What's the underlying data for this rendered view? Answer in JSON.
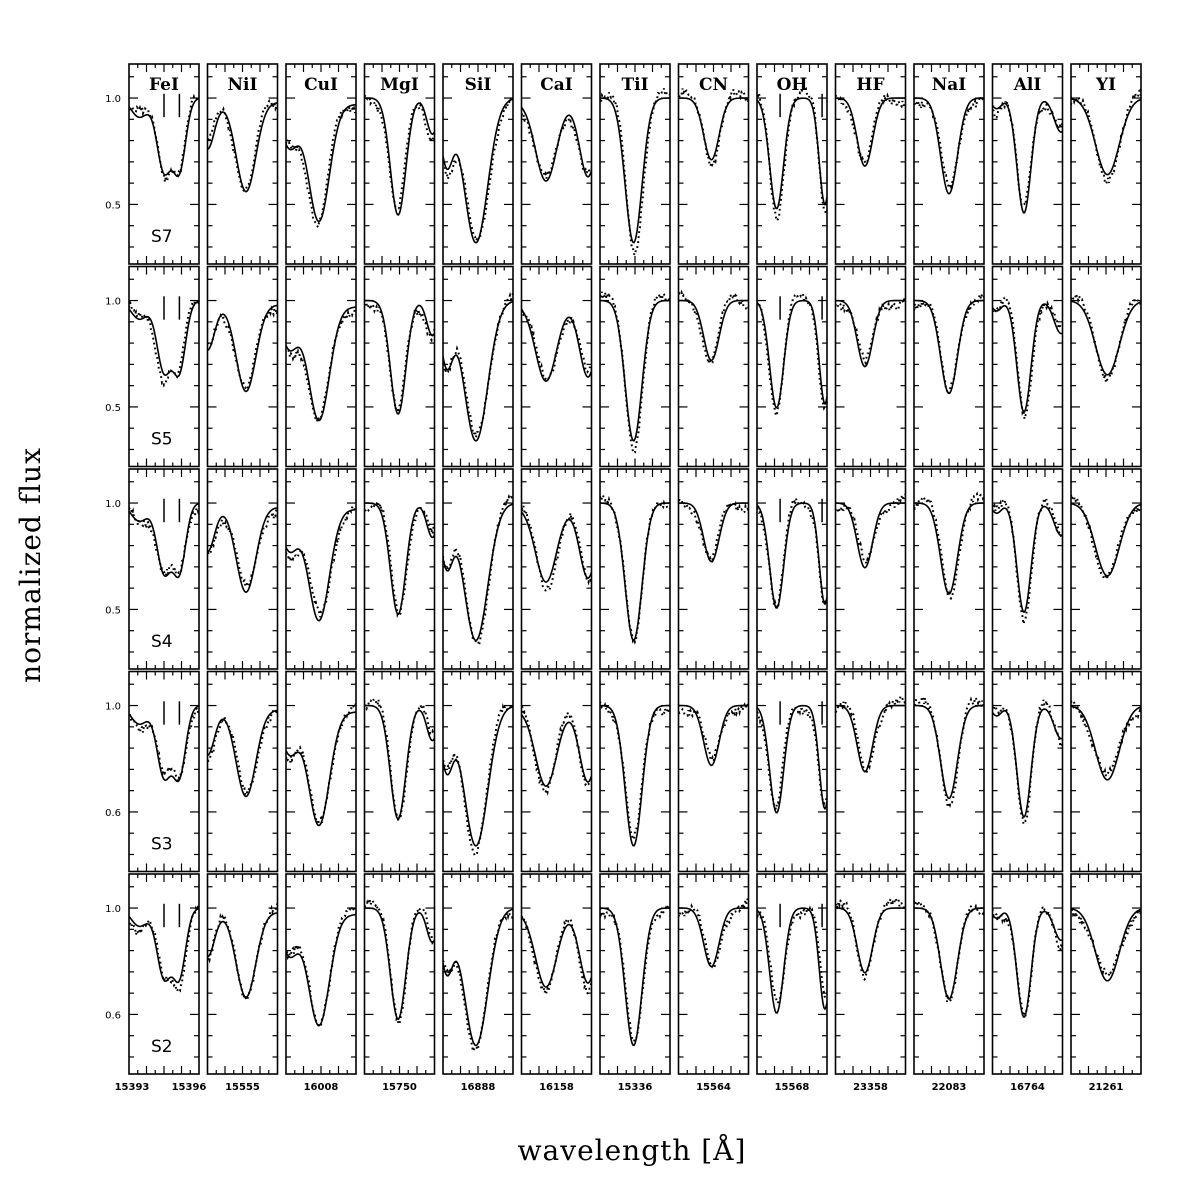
{
  "chart_data": {
    "type": "line",
    "xlabel": "wavelength [Å]",
    "ylabel": "normalized flux",
    "ylim": [
      0.22,
      1.16
    ],
    "yticks": [
      0.5,
      1.0
    ],
    "ytick_labels": [
      "0.5",
      "1.0"
    ],
    "ytick_labels_bottom_rows": [
      "0.6",
      "1.0"
    ],
    "grid": false,
    "legend": "none",
    "series_styles": {
      "model": "solid",
      "observed": "dotted"
    },
    "columns": [
      {
        "element": "FeI",
        "tick_labels": [
          "15393",
          "15396"
        ],
        "marks": [
          0.5,
          0.72
        ]
      },
      {
        "element": "NiI",
        "tick_labels": [
          "15555"
        ],
        "marks": []
      },
      {
        "element": "CuI",
        "tick_labels": [
          "16008"
        ],
        "marks": []
      },
      {
        "element": "MgI",
        "tick_labels": [
          "15750"
        ],
        "marks": []
      },
      {
        "element": "SiI",
        "tick_labels": [
          "16888"
        ],
        "marks": []
      },
      {
        "element": "CaI",
        "tick_labels": [
          "16158"
        ],
        "marks": []
      },
      {
        "element": "TiI",
        "tick_labels": [
          "15336"
        ],
        "marks": []
      },
      {
        "element": "CN",
        "tick_labels": [
          "15564"
        ],
        "marks": []
      },
      {
        "element": "OH",
        "tick_labels": [
          "15568"
        ],
        "marks": [
          0.33,
          0.93
        ]
      },
      {
        "element": "HF",
        "tick_labels": [
          "23358"
        ],
        "marks": []
      },
      {
        "element": "NaI",
        "tick_labels": [
          "22083"
        ],
        "marks": []
      },
      {
        "element": "AlI",
        "tick_labels": [
          "16764"
        ],
        "marks": []
      },
      {
        "element": "YI",
        "tick_labels": [
          "21261"
        ],
        "marks": []
      }
    ],
    "rows": [
      {
        "star": "S7",
        "depth": 1.0
      },
      {
        "star": "S5",
        "depth": 0.97
      },
      {
        "star": "S4",
        "depth": 0.95
      },
      {
        "star": "S3",
        "depth": 0.97
      },
      {
        "star": "S2",
        "depth": 0.95
      }
    ],
    "line_profiles": [
      {
        "element": "FeI",
        "baseline": 1.0,
        "lines": [
          [
            0.15,
            0.09,
            0.12
          ],
          [
            0.5,
            0.34,
            0.1
          ],
          [
            0.72,
            0.33,
            0.09
          ]
        ]
      },
      {
        "element": "NiI",
        "baseline": 0.98,
        "lines": [
          [
            0.0,
            0.22,
            0.1
          ],
          [
            0.55,
            0.42,
            0.14
          ]
        ]
      },
      {
        "element": "CuI",
        "baseline": 0.97,
        "lines": [
          [
            0.05,
            0.2,
            0.12
          ],
          [
            0.47,
            0.55,
            0.15
          ]
        ]
      },
      {
        "element": "MgI",
        "baseline": 1.0,
        "lines": [
          [
            0.48,
            0.55,
            0.11
          ],
          [
            0.97,
            0.17,
            0.08
          ]
        ]
      },
      {
        "element": "SiI",
        "baseline": 1.0,
        "lines": [
          [
            0.05,
            0.3,
            0.09
          ],
          [
            0.47,
            0.68,
            0.17
          ]
        ]
      },
      {
        "element": "CaI",
        "baseline": 0.98,
        "lines": [
          [
            0.35,
            0.37,
            0.15
          ],
          [
            0.95,
            0.35,
            0.12
          ]
        ]
      },
      {
        "element": "TiI",
        "baseline": 1.0,
        "lines": [
          [
            0.48,
            0.68,
            0.12
          ]
        ]
      },
      {
        "element": "CN",
        "baseline": 1.0,
        "lines": [
          [
            0.47,
            0.29,
            0.11
          ]
        ]
      },
      {
        "element": "OH",
        "baseline": 1.0,
        "lines": [
          [
            0.28,
            0.52,
            0.1
          ],
          [
            0.97,
            0.5,
            0.08
          ]
        ]
      },
      {
        "element": "HF",
        "baseline": 1.0,
        "lines": [
          [
            0.42,
            0.32,
            0.11
          ]
        ]
      },
      {
        "element": "NaI",
        "baseline": 1.0,
        "lines": [
          [
            0.5,
            0.45,
            0.12
          ]
        ]
      },
      {
        "element": "AlI",
        "baseline": 1.0,
        "lines": [
          [
            0.06,
            0.05,
            0.07
          ],
          [
            0.45,
            0.54,
            0.1
          ],
          [
            0.98,
            0.16,
            0.1
          ]
        ]
      },
      {
        "element": "YI",
        "baseline": 1.0,
        "lines": [
          [
            0.52,
            0.36,
            0.17
          ]
        ]
      }
    ]
  }
}
